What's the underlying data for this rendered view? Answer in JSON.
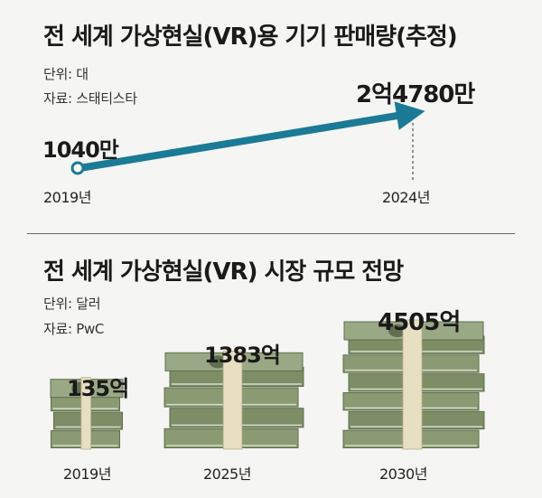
{
  "section1": {
    "title": "전 세계 가상현실(VR)용 기기 판매량(추정)",
    "unit": "단위: 대",
    "source": "자료: 스태티스타",
    "points": [
      {
        "year": "2019년",
        "label": "1040만"
      },
      {
        "year": "2024년",
        "label": "2억4780만"
      }
    ]
  },
  "section2": {
    "title": "전 세계 가상현실(VR) 시장 규모 전망",
    "unit": "단위: 달러",
    "source": "자료: PwC",
    "bars": [
      {
        "year": "2019년",
        "label": "135억"
      },
      {
        "year": "2025년",
        "label": "1383억"
      },
      {
        "year": "2030년",
        "label": "4505억"
      }
    ]
  },
  "chart_data": [
    {
      "type": "line",
      "title": "전 세계 가상현실(VR)용 기기 판매량(추정)",
      "unit": "단위: 대",
      "source": "자료: 스태티스타",
      "x": [
        "2019년",
        "2024년"
      ],
      "values": [
        10400000,
        247800000
      ],
      "data_labels": [
        "1040만",
        "2억4780만"
      ],
      "color": "#1b7a96"
    },
    {
      "type": "bar",
      "title": "전 세계 가상현실(VR) 시장 규모 전망",
      "unit": "단위: 달러",
      "source": "자료: PwC",
      "categories": [
        "2019년",
        "2025년",
        "2030년"
      ],
      "values": [
        13500000000,
        138300000000,
        450500000000
      ],
      "data_labels": [
        "135억",
        "1383억",
        "4505억"
      ],
      "bar_style": "stacked dollar bills",
      "colors": {
        "bill": "#8a9a72",
        "bill_dark": "#5e6e4e",
        "band": "#e8dfc2"
      }
    }
  ]
}
